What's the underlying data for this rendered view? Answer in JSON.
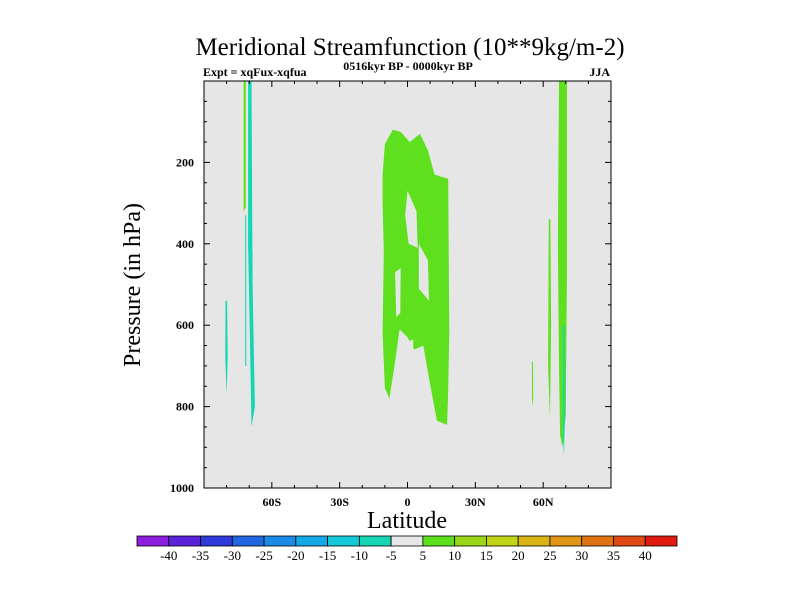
{
  "chart_data": {
    "type": "contour",
    "title": "Meridional Streamfunction (10**9kg/m-2)",
    "subtitle_left": "Expt = xqFux-xqfua",
    "subtitle_center": "0516kyr BP - 0000kyr BP",
    "subtitle_right": "JJA",
    "xlabel": "Latitude",
    "ylabel": "Pressure (in hPa)",
    "xlim": [
      -90,
      90
    ],
    "ylim": [
      1000,
      0
    ],
    "x_ticks": [
      {
        "value": -60,
        "label": "60S"
      },
      {
        "value": -30,
        "label": "30S"
      },
      {
        "value": 0,
        "label": "0"
      },
      {
        "value": 30,
        "label": "30N"
      },
      {
        "value": 60,
        "label": "60N"
      }
    ],
    "y_ticks": [
      {
        "value": 200,
        "label": "200"
      },
      {
        "value": 400,
        "label": "400"
      },
      {
        "value": 600,
        "label": "600"
      },
      {
        "value": 800,
        "label": "800"
      },
      {
        "value": 1000,
        "label": "1000"
      }
    ],
    "background_color": "#e6e6e6",
    "colorbar": {
      "labels": [
        "-40",
        "-35",
        "-30",
        "-25",
        "-20",
        "-15",
        "-10",
        "-5",
        "5",
        "10",
        "15",
        "20",
        "25",
        "30",
        "35",
        "40"
      ],
      "colors": [
        "#8e1fe0",
        "#5b22d9",
        "#2e3ad9",
        "#1f66e0",
        "#1a8ae6",
        "#14a8e6",
        "#14c8d8",
        "#14d6b4",
        "#e6e6e6",
        "#5ee01e",
        "#9ad61a",
        "#c2d416",
        "#d8b414",
        "#e09614",
        "#e07414",
        "#e04a14",
        "#e01a10"
      ]
    },
    "regions": [
      {
        "name": "sh-polar-narrow-positive",
        "level": "5 to 10",
        "color": "#5ee01e",
        "points": [
          [
            -72.5,
            0
          ],
          [
            -71.5,
            0
          ],
          [
            -71.5,
            310
          ],
          [
            -72.5,
            320
          ]
        ]
      },
      {
        "name": "sh-polar-negative-column",
        "level": "-10 to -5",
        "color": "#14d6b4",
        "points": [
          [
            -70.5,
            0
          ],
          [
            -69,
            0
          ],
          [
            -68.5,
            500
          ],
          [
            -67.5,
            800
          ],
          [
            -69,
            850
          ],
          [
            -69.5,
            700
          ],
          [
            -70.5,
            400
          ]
        ]
      },
      {
        "name": "sh-polar-negative-thin",
        "level": "-10 to -5",
        "color": "#14d6b4",
        "points": [
          [
            -71.8,
            330
          ],
          [
            -71.3,
            330
          ],
          [
            -71.3,
            700
          ],
          [
            -71.8,
            700
          ]
        ]
      },
      {
        "name": "sh-subpolar-negative",
        "level": "-10 to -5",
        "color": "#14d6b4",
        "points": [
          [
            -80.5,
            540
          ],
          [
            -79.8,
            540
          ],
          [
            -79.5,
            680
          ],
          [
            -80,
            770
          ],
          [
            -80.6,
            680
          ]
        ]
      },
      {
        "name": "tropical-main-cell",
        "level": "5 to 10",
        "color": "#5ee01e",
        "points": [
          [
            -11,
            230
          ],
          [
            -10,
            155
          ],
          [
            -6.5,
            120
          ],
          [
            -3,
            125
          ],
          [
            1,
            150
          ],
          [
            5.5,
            130
          ],
          [
            9,
            170
          ],
          [
            12,
            230
          ],
          [
            18,
            240
          ],
          [
            18.5,
            620
          ],
          [
            18,
            760
          ],
          [
            17.5,
            845
          ],
          [
            13,
            835
          ],
          [
            9.5,
            730
          ],
          [
            7,
            650
          ],
          [
            3,
            660
          ],
          [
            0,
            630
          ],
          [
            -3.5,
            610
          ],
          [
            -5.5,
            690
          ],
          [
            -8,
            780
          ],
          [
            -10,
            755
          ],
          [
            -11,
            620
          ],
          [
            -10.5,
            420
          ],
          [
            -11,
            300
          ]
        ]
      },
      {
        "name": "tropical-hole-upper",
        "level": "-5 to 5",
        "color": "#e6e6e6",
        "points": [
          [
            -1,
            330
          ],
          [
            0,
            270
          ],
          [
            4,
            320
          ],
          [
            4.5,
            410
          ],
          [
            0.5,
            400
          ]
        ]
      },
      {
        "name": "tropical-hole-mid",
        "level": "-5 to 5",
        "color": "#e6e6e6",
        "points": [
          [
            5,
            400
          ],
          [
            9,
            440
          ],
          [
            9.5,
            540
          ],
          [
            5,
            510
          ]
        ]
      },
      {
        "name": "tropical-hole-left",
        "level": "-5 to 5",
        "color": "#e6e6e6",
        "points": [
          [
            -5.5,
            470
          ],
          [
            -3,
            460
          ],
          [
            -3.2,
            570
          ],
          [
            -5,
            580
          ]
        ]
      },
      {
        "name": "tropical-hole-lower",
        "level": "-5 to 5",
        "color": "#e6e6e6",
        "points": [
          [
            0.5,
            640
          ],
          [
            2.5,
            635
          ],
          [
            2.5,
            655
          ],
          [
            0.5,
            665
          ]
        ]
      },
      {
        "name": "nh-polar-positive",
        "level": "5 to 10",
        "color": "#5ee01e",
        "points": [
          [
            67,
            0
          ],
          [
            70.5,
            0
          ],
          [
            70.5,
            480
          ],
          [
            70,
            820
          ],
          [
            68.5,
            900
          ],
          [
            67.5,
            870
          ],
          [
            67,
            700
          ],
          [
            66.5,
            400
          ]
        ]
      },
      {
        "name": "nh-polar-negative-right",
        "level": "-10 to -5",
        "color": "#14d6b4",
        "points": [
          [
            68.8,
            600
          ],
          [
            69.5,
            600
          ],
          [
            69.6,
            820
          ],
          [
            69.2,
            920
          ],
          [
            68.7,
            870
          ]
        ]
      },
      {
        "name": "nh-subpolar-positive",
        "level": "5 to 10",
        "color": "#5ee01e",
        "points": [
          [
            62.5,
            340
          ],
          [
            63.2,
            340
          ],
          [
            63.5,
            600
          ],
          [
            63,
            830
          ],
          [
            62.2,
            700
          ]
        ]
      },
      {
        "name": "nh-midlat-positive",
        "level": "5 to 10",
        "color": "#5ee01e",
        "points": [
          [
            55,
            690
          ],
          [
            55.5,
            690
          ],
          [
            55.6,
            780
          ],
          [
            55.1,
            800
          ]
        ]
      }
    ]
  }
}
